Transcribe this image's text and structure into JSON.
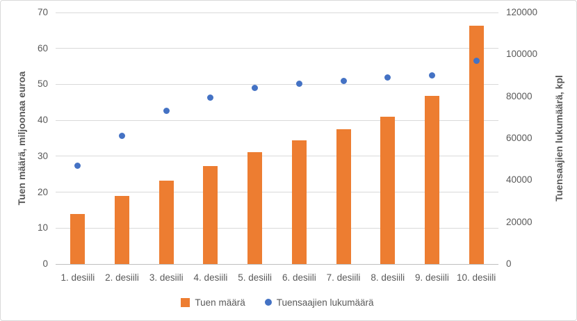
{
  "chart_data": {
    "type": "combo",
    "categories": [
      "1. desiili",
      "2. desiili",
      "3. desiili",
      "4. desiili",
      "5. desiili",
      "6. desiili",
      "7. desiili",
      "8. desiili",
      "9. desiili",
      "10. desiili"
    ],
    "series": [
      {
        "name": "Tuen määrä",
        "type": "bar",
        "axis": "left",
        "color": "#ED7D31",
        "values": [
          14.0,
          19.0,
          23.3,
          27.3,
          31.1,
          34.5,
          37.5,
          40.9,
          46.7,
          66.3
        ]
      },
      {
        "name": "Tuensaajien lukumäärä",
        "type": "scatter",
        "axis": "right",
        "color": "#4472C4",
        "values": [
          47000,
          61000,
          73000,
          79500,
          84000,
          86000,
          87500,
          89000,
          90000,
          97000
        ]
      }
    ],
    "left_axis": {
      "title": "Tuen määrä, miljoonaa euroa",
      "min": 0,
      "max": 70,
      "tick_labels": [
        "0",
        "10",
        "20",
        "30",
        "40",
        "50",
        "60",
        "70"
      ]
    },
    "right_axis": {
      "title": "Tuensaajien lukumäärä, kpl",
      "min": 0,
      "max": 120000,
      "tick_labels": [
        "0",
        "20000",
        "40000",
        "60000",
        "80000",
        "100000",
        "120000"
      ]
    },
    "grid": true,
    "legend_position": "bottom",
    "colors": {
      "bar": "#ED7D31",
      "dot": "#4472C4",
      "gridline": "#d9d9d9",
      "axis_line": "#bfbfbf",
      "text": "#595959"
    }
  }
}
